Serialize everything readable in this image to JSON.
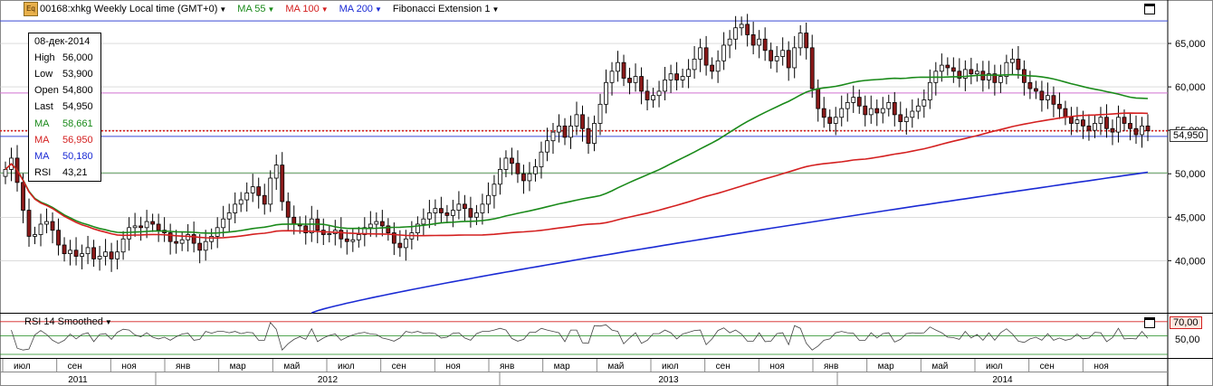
{
  "toolbar": {
    "icon": "Eq",
    "symbol": "00168:xhkg Weekly Local time (GMT+0)",
    "ma55_label": "MA 55",
    "ma100_label": "MA 100",
    "ma200_label": "MA 200",
    "fib_label": "Fibonacci Extension 1"
  },
  "info_panel": {
    "date": "08-дек-2014",
    "rows": [
      {
        "key": "High",
        "value": "56,000",
        "color": "#000000"
      },
      {
        "key": "Low",
        "value": "53,900",
        "color": "#000000"
      },
      {
        "key": "Open",
        "value": "54,800",
        "color": "#000000"
      },
      {
        "key": "Last",
        "value": "54,950",
        "color": "#000000"
      },
      {
        "key": "MA",
        "value": "58,661",
        "color": "#1a8a1a"
      },
      {
        "key": "MA",
        "value": "56,950",
        "color": "#d42020"
      },
      {
        "key": "MA",
        "value": "50,180",
        "color": "#1a2ad4"
      },
      {
        "key": "RSI",
        "value": "43,21",
        "color": "#000000"
      }
    ]
  },
  "last_price_badge": "54,950",
  "rsi_panel": {
    "title": "RSI 14 Smoothed",
    "level_badge": "70,00",
    "mid_label": "50,00",
    "close_icon": "✕"
  },
  "colors": {
    "ma55": "#1a8a1a",
    "ma100": "#d42020",
    "ma200": "#1a2ad4",
    "up": "#ffffff",
    "down": "#8b1a1a",
    "grid": "#c8c8c8"
  },
  "chart_data": {
    "type": "candlestick",
    "y_ticks": [
      "40,000",
      "45,000",
      "50,000",
      "55,000",
      "60,000",
      "65,000"
    ],
    "y_tick_values": [
      40000,
      45000,
      50000,
      55000,
      60000,
      65000
    ],
    "ylim": [
      34000,
      70000
    ],
    "horizontal_levels": [
      {
        "value": 67600,
        "color": "#3a4ad4"
      },
      {
        "value": 59300,
        "color": "#d070d0"
      },
      {
        "value": 54950,
        "color": "#d42020",
        "dotted": true
      },
      {
        "value": 54300,
        "color": "#3a4ad4"
      },
      {
        "value": 50100,
        "color": "#60a060"
      }
    ],
    "months": [
      "июл",
      "сен",
      "ноя",
      "янв",
      "мар",
      "май",
      "июл",
      "сен",
      "ноя",
      "янв",
      "мар",
      "май",
      "июл",
      "сен",
      "ноя",
      "янв",
      "мар",
      "май",
      "июл",
      "сен",
      "ноя"
    ],
    "years": [
      "2011",
      "2012",
      "2013",
      "2014"
    ],
    "closes": [
      50500,
      51800,
      49000,
      45800,
      42800,
      43000,
      44200,
      44500,
      43500,
      41800,
      40800,
      41200,
      40500,
      40800,
      41500,
      40200,
      40500,
      41000,
      40200,
      41000,
      42500,
      43800,
      44000,
      43800,
      44500,
      44200,
      43500,
      43200,
      42200,
      42000,
      42400,
      43000,
      42000,
      41200,
      42200,
      42800,
      43800,
      44800,
      45500,
      46500,
      47000,
      47800,
      48500,
      47500,
      46500,
      49500,
      51000,
      46800,
      45000,
      44200,
      44000,
      43200,
      44800,
      43500,
      43000,
      43100,
      43500,
      42500,
      42200,
      42400,
      43000,
      43800,
      44200,
      44500,
      44000,
      43200,
      42000,
      41500,
      42500,
      43200,
      44200,
      44800,
      45500,
      46000,
      45500,
      45200,
      45800,
      46500,
      46000,
      45000,
      45500,
      46500,
      47500,
      48800,
      50500,
      51800,
      51200,
      50000,
      49200,
      50000,
      50800,
      52500,
      53800,
      54800,
      55500,
      54200,
      55500,
      56800,
      55200,
      53500,
      55800,
      58000,
      60500,
      61800,
      62800,
      61000,
      60500,
      61200,
      59500,
      58500,
      59000,
      59500,
      60800,
      61500,
      60800,
      61200,
      62000,
      63200,
      64500,
      62500,
      61800,
      63000,
      64800,
      65500,
      66800,
      67200,
      66000,
      64800,
      65500,
      64200,
      63000,
      63500,
      64200,
      62200,
      64500,
      66200,
      64500,
      59800,
      57500,
      56500,
      55800,
      56500,
      57500,
      58200,
      58800,
      57800,
      56800,
      57500,
      57000,
      57500,
      58200,
      56800,
      56000,
      56500,
      57200,
      57800,
      58500,
      60500,
      61800,
      62500,
      62200,
      61800,
      61000,
      62000,
      61500,
      61800,
      60800,
      61500,
      60500,
      61200,
      62800,
      63200,
      62000,
      60500,
      59800,
      59500,
      58500,
      59000,
      58000,
      57500,
      56500,
      55800,
      56200,
      55500,
      55000,
      55800,
      56500,
      55200,
      54800,
      56500,
      55800,
      55200,
      54500,
      55500,
      54950
    ],
    "ma55": {
      "name": "MA 55",
      "last": 58661
    },
    "ma100": {
      "name": "MA 100",
      "last": 56950
    },
    "ma200": {
      "name": "MA 200",
      "last": 50180
    },
    "rsi": {
      "name": "RSI 14 Smoothed",
      "last": 43.21,
      "levels": [
        70,
        50
      ]
    }
  }
}
